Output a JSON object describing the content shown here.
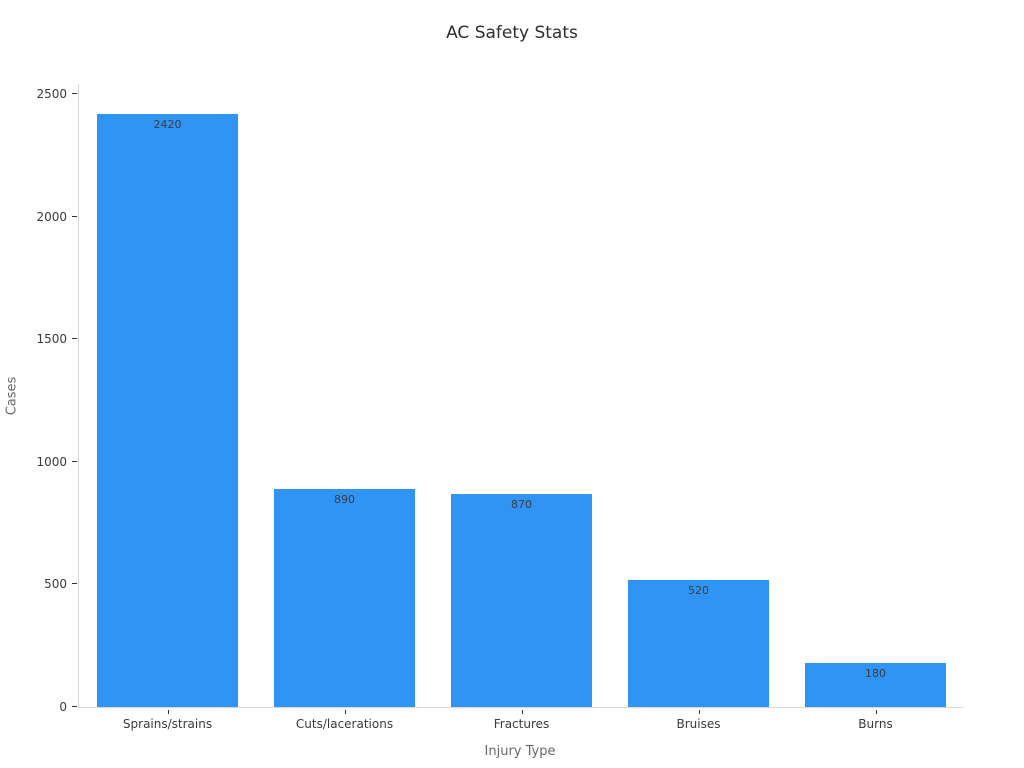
{
  "chart_data": {
    "type": "bar",
    "title": "AC Safety Stats",
    "xlabel": "Injury Type",
    "ylabel": "Cases",
    "categories": [
      "Sprains/strains",
      "Cuts/lacerations",
      "Fractures",
      "Bruises",
      "Burns"
    ],
    "values": [
      2420,
      890,
      870,
      520,
      180
    ],
    "bar_value_labels": [
      "2420",
      "890",
      "870",
      "520",
      "180"
    ],
    "yticks": [
      0,
      500,
      1000,
      1500,
      2000,
      2500
    ],
    "ytick_labels": [
      "0",
      "500",
      "1000",
      "1500",
      "2000",
      "2500"
    ],
    "ylim": [
      0,
      2541
    ],
    "bar_width_fraction": 0.8,
    "grid": false,
    "legend": "none",
    "orientation": "vertical"
  },
  "colors": {
    "bar": "#2F94F3",
    "background": "#FFFFFF",
    "spine": "#D9D9D9",
    "tick_mark": "#333333",
    "tick_label": "#3B3B3B",
    "axis_label": "#696969",
    "title": "#2E2E2E",
    "bar_value_label": "#3D3D3D"
  }
}
